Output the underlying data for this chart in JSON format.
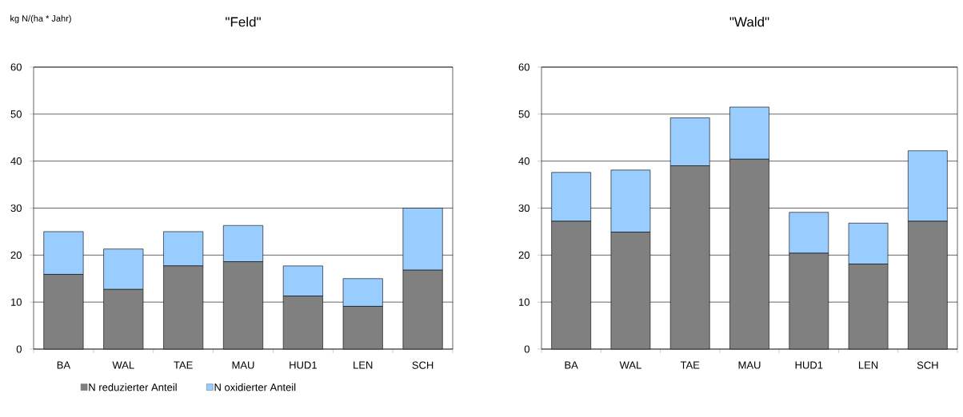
{
  "chart_data": [
    {
      "type": "bar",
      "stacked": true,
      "title": "\"Feld\"",
      "ylabel": "kg N/(ha * Jahr)",
      "categories": [
        "BA",
        "WAL",
        "TAE",
        "MAU",
        "HUD1",
        "LEN",
        "SCH"
      ],
      "series": [
        {
          "name": "N reduzierter Anteil",
          "color": "#808080",
          "values": [
            15.9,
            12.7,
            17.7,
            18.6,
            11.3,
            9.1,
            16.8
          ]
        },
        {
          "name": "N oxidierter Anteil",
          "color": "#99ccff",
          "values": [
            9.1,
            8.6,
            7.3,
            7.7,
            6.4,
            5.9,
            13.2
          ]
        }
      ],
      "ylim": [
        0,
        60
      ],
      "yticks": [
        0,
        10,
        20,
        30,
        40,
        50,
        60
      ],
      "grid": "y",
      "legend": "bottom"
    },
    {
      "type": "bar",
      "stacked": true,
      "title": "\"Wald\"",
      "categories": [
        "BA",
        "WAL",
        "TAE",
        "MAU",
        "HUD1",
        "LEN",
        "SCH"
      ],
      "series": [
        {
          "color": "#808080",
          "values": [
            27.2,
            24.9,
            39.0,
            40.4,
            20.4,
            18.1,
            27.2
          ]
        },
        {
          "color": "#99ccff",
          "values": [
            10.4,
            13.2,
            10.2,
            11.1,
            8.7,
            8.7,
            15.0
          ]
        }
      ],
      "ylim": [
        0,
        60
      ],
      "yticks": [
        0,
        10,
        20,
        30,
        40,
        50,
        60
      ],
      "grid": "y"
    }
  ]
}
